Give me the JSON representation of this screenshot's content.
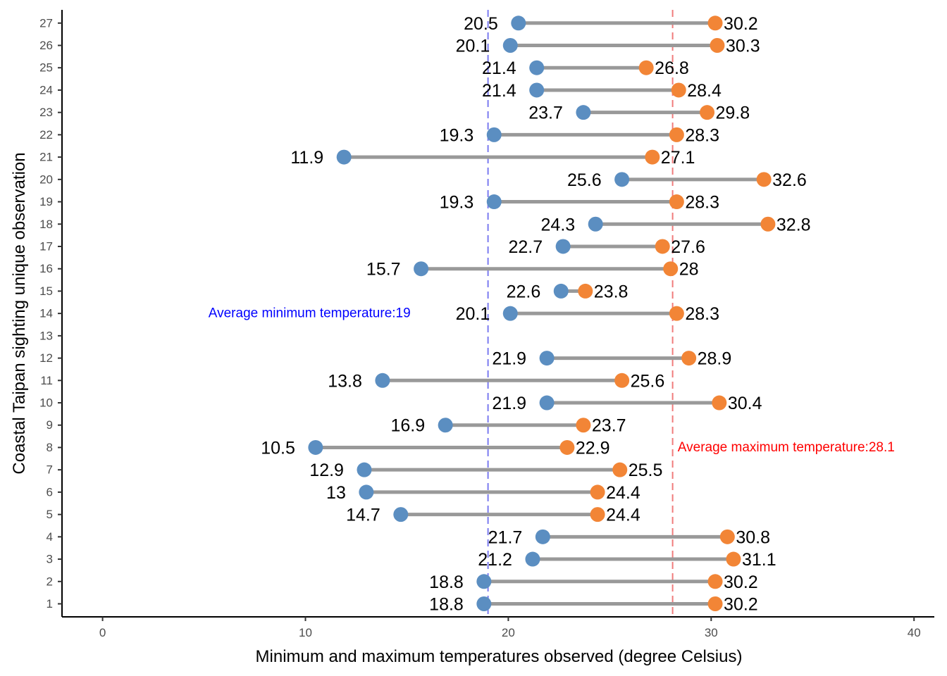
{
  "chart_data": {
    "type": "dumbbell",
    "xlabel": "Minimum and maximum temperatures observed (degree Celsius)",
    "ylabel": "Coastal Taipan sighting unique observation",
    "xlim": [
      -2,
      41
    ],
    "x_ticks": [
      0,
      10,
      20,
      30,
      40
    ],
    "y_ticks": [
      1,
      2,
      3,
      4,
      5,
      6,
      7,
      8,
      9,
      10,
      11,
      12,
      13,
      14,
      15,
      16,
      17,
      18,
      19,
      20,
      21,
      22,
      23,
      24,
      25,
      26,
      27
    ],
    "grid": false,
    "colors": {
      "min_point": "#5b8ec1",
      "max_point": "#f28536",
      "segment": "#999999",
      "avg_min_line": "#7b7bf0",
      "avg_max_line": "#f07b7b",
      "avg_min_text": "#0000ff",
      "avg_max_text": "#ff0000"
    },
    "observations": [
      {
        "id": 1,
        "min": 18.8,
        "max": 30.2,
        "min_label": "18.8",
        "max_label": "30.2"
      },
      {
        "id": 2,
        "min": 18.8,
        "max": 30.2,
        "min_label": "18.8",
        "max_label": "30.2"
      },
      {
        "id": 3,
        "min": 21.2,
        "max": 31.1,
        "min_label": "21.2",
        "max_label": "31.1"
      },
      {
        "id": 4,
        "min": 21.7,
        "max": 30.8,
        "min_label": "21.7",
        "max_label": "30.8"
      },
      {
        "id": 5,
        "min": 14.7,
        "max": 24.4,
        "min_label": "14.7",
        "max_label": "24.4"
      },
      {
        "id": 6,
        "min": 13.0,
        "max": 24.4,
        "min_label": "13",
        "max_label": "24.4"
      },
      {
        "id": 7,
        "min": 12.9,
        "max": 25.5,
        "min_label": "12.9",
        "max_label": "25.5"
      },
      {
        "id": 8,
        "min": 10.5,
        "max": 22.9,
        "min_label": "10.5",
        "max_label": "22.9"
      },
      {
        "id": 9,
        "min": 16.9,
        "max": 23.7,
        "min_label": "16.9",
        "max_label": "23.7"
      },
      {
        "id": 10,
        "min": 21.9,
        "max": 30.4,
        "min_label": "21.9",
        "max_label": "30.4"
      },
      {
        "id": 11,
        "min": 13.8,
        "max": 25.6,
        "min_label": "13.8",
        "max_label": "25.6"
      },
      {
        "id": 12,
        "min": 21.9,
        "max": 28.9,
        "min_label": "21.9",
        "max_label": "28.9"
      },
      {
        "id": 14,
        "min": 20.1,
        "max": 28.3,
        "min_label": "20.1",
        "max_label": "28.3"
      },
      {
        "id": 15,
        "min": 22.6,
        "max": 23.8,
        "min_label": "22.6",
        "max_label": "23.8"
      },
      {
        "id": 16,
        "min": 15.7,
        "max": 28.0,
        "min_label": "15.7",
        "max_label": "28"
      },
      {
        "id": 17,
        "min": 22.7,
        "max": 27.6,
        "min_label": "22.7",
        "max_label": "27.6"
      },
      {
        "id": 18,
        "min": 24.3,
        "max": 32.8,
        "min_label": "24.3",
        "max_label": "32.8"
      },
      {
        "id": 19,
        "min": 19.3,
        "max": 28.3,
        "min_label": "19.3",
        "max_label": "28.3"
      },
      {
        "id": 20,
        "min": 25.6,
        "max": 32.6,
        "min_label": "25.6",
        "max_label": "32.6"
      },
      {
        "id": 21,
        "min": 11.9,
        "max": 27.1,
        "min_label": "11.9",
        "max_label": "27.1"
      },
      {
        "id": 22,
        "min": 19.3,
        "max": 28.3,
        "min_label": "19.3",
        "max_label": "28.3"
      },
      {
        "id": 23,
        "min": 23.7,
        "max": 29.8,
        "min_label": "23.7",
        "max_label": "29.8"
      },
      {
        "id": 24,
        "min": 21.4,
        "max": 28.4,
        "min_label": "21.4",
        "max_label": "28.4"
      },
      {
        "id": 25,
        "min": 21.4,
        "max": 26.8,
        "min_label": "21.4",
        "max_label": "26.8"
      },
      {
        "id": 26,
        "min": 20.1,
        "max": 30.3,
        "min_label": "20.1",
        "max_label": "30.3"
      },
      {
        "id": 27,
        "min": 20.5,
        "max": 30.2,
        "min_label": "20.5",
        "max_label": "30.2"
      }
    ],
    "reference_lines": [
      {
        "name": "avg-min",
        "value": 19.0,
        "text": "Average minimum temperature:19",
        "label_x": 10.2,
        "label_y": 14,
        "color_key": "avg_min"
      },
      {
        "name": "avg-max",
        "value": 28.1,
        "text": "Average maximum temperature:28.1",
        "label_x": 33.7,
        "label_y": 8,
        "color_key": "avg_max"
      }
    ]
  }
}
